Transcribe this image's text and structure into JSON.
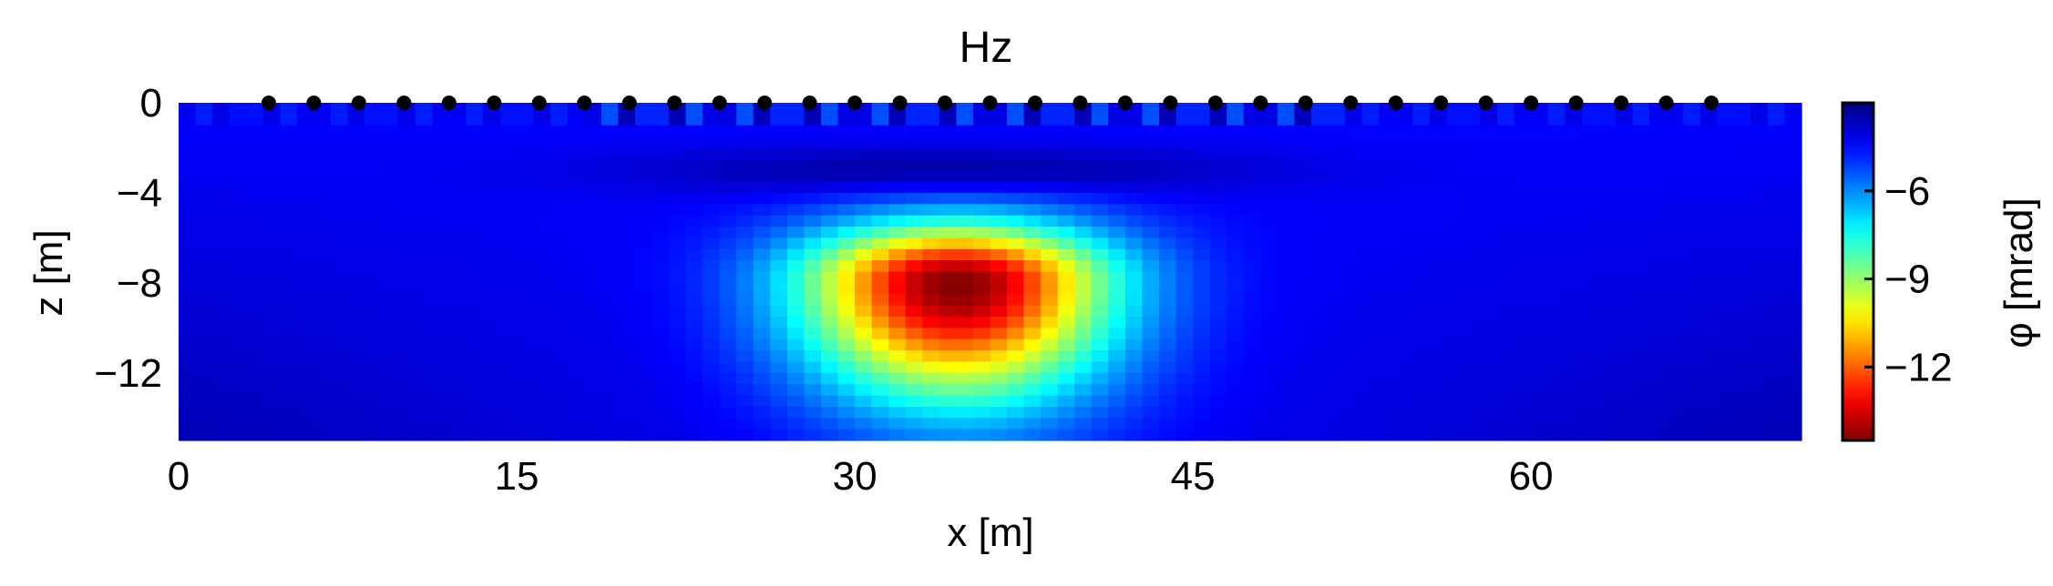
{
  "chart_data": {
    "type": "heatmap",
    "title": "Hz",
    "xlabel": "x [m]",
    "ylabel": "z [m]",
    "xlim": [
      0,
      72
    ],
    "ylim": [
      -15,
      0
    ],
    "x_ticks": [
      0,
      15,
      30,
      45,
      60
    ],
    "x_tick_labels": [
      "0",
      "15",
      "30",
      "45",
      "60"
    ],
    "y_ticks": [
      0,
      -4,
      -8,
      -12
    ],
    "y_tick_labels": [
      "0",
      "−4",
      "−8",
      "−12"
    ],
    "colorbar": {
      "label": "φ [mrad]",
      "range": [
        -14.5,
        -3
      ],
      "ticks": [
        -6,
        -9,
        -12
      ],
      "tick_labels": [
        "−6",
        "−9",
        "−12"
      ],
      "colormap": "jet_reversed"
    },
    "anomaly": {
      "center_x": 34.5,
      "center_z": -8,
      "min_value": -14.5
    },
    "background_value": -4.5,
    "electrodes_x": [
      4,
      6,
      8,
      10,
      12,
      14,
      16,
      18,
      20,
      22,
      24,
      26,
      28,
      30,
      32,
      34,
      36,
      38,
      40,
      42,
      44,
      46,
      48,
      50,
      52,
      54,
      56,
      58,
      60,
      62,
      64,
      66,
      68
    ],
    "electrode_z": 0,
    "grid": false
  },
  "colors": {
    "electrode": "#000000",
    "axis": "#000000",
    "background": "#ffffff"
  }
}
